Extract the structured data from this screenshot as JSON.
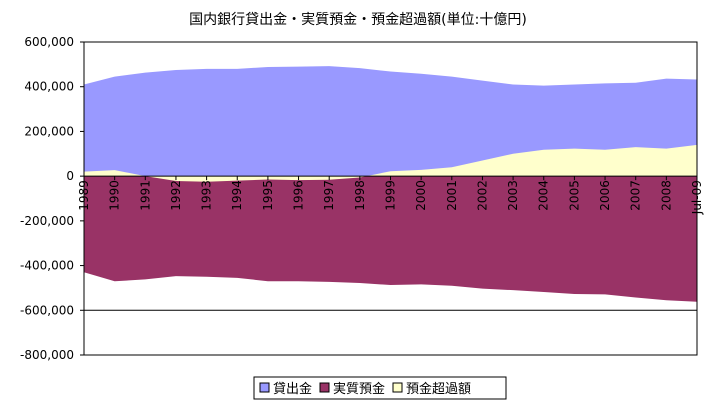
{
  "chart_data": {
    "type": "area",
    "title": "国内銀行貸出金・実質預金・預金超過額(単位:十億円)",
    "xlabel": "",
    "ylabel": "",
    "ylim": [
      -800000,
      600000
    ],
    "yticks": [
      600000,
      400000,
      200000,
      0,
      -200000,
      -400000,
      -600000,
      -800000
    ],
    "ytick_labels": [
      "600,000",
      "400,000",
      "200,000",
      "0",
      "-200,000",
      "-400,000",
      "-600,000",
      "-800,000"
    ],
    "categories": [
      "1989",
      "1990",
      "1991",
      "1992",
      "1993",
      "1994",
      "1995",
      "1996",
      "1997",
      "1998",
      "1999",
      "2000",
      "2001",
      "2002",
      "2003",
      "2004",
      "2005",
      "2006",
      "2007",
      "2008",
      "Jul-09"
    ],
    "series": [
      {
        "name": "貸出金",
        "color": "#9999ff",
        "values": [
          410000,
          445000,
          463000,
          475000,
          480000,
          480000,
          488000,
          490000,
          492000,
          483000,
          468000,
          458000,
          445000,
          427000,
          410000,
          405000,
          410000,
          415000,
          418000,
          436000,
          432000
        ]
      },
      {
        "name": "実質預金",
        "color": "#993366",
        "values": [
          -430000,
          -470000,
          -462000,
          -447000,
          -450000,
          -455000,
          -470000,
          -470000,
          -473000,
          -478000,
          -487000,
          -484000,
          -490000,
          -503000,
          -510000,
          -518000,
          -527000,
          -529000,
          -543000,
          -555000,
          -562000
        ]
      },
      {
        "name": "預金超過額",
        "color": "#ffffcc",
        "values": [
          20000,
          27000,
          0,
          -22000,
          -25000,
          -20000,
          -15000,
          -18000,
          -16000,
          -6000,
          22000,
          28000,
          40000,
          70000,
          100000,
          118000,
          123000,
          118000,
          130000,
          123000,
          140000
        ]
      }
    ],
    "legend_position": "bottom",
    "grid": false
  }
}
